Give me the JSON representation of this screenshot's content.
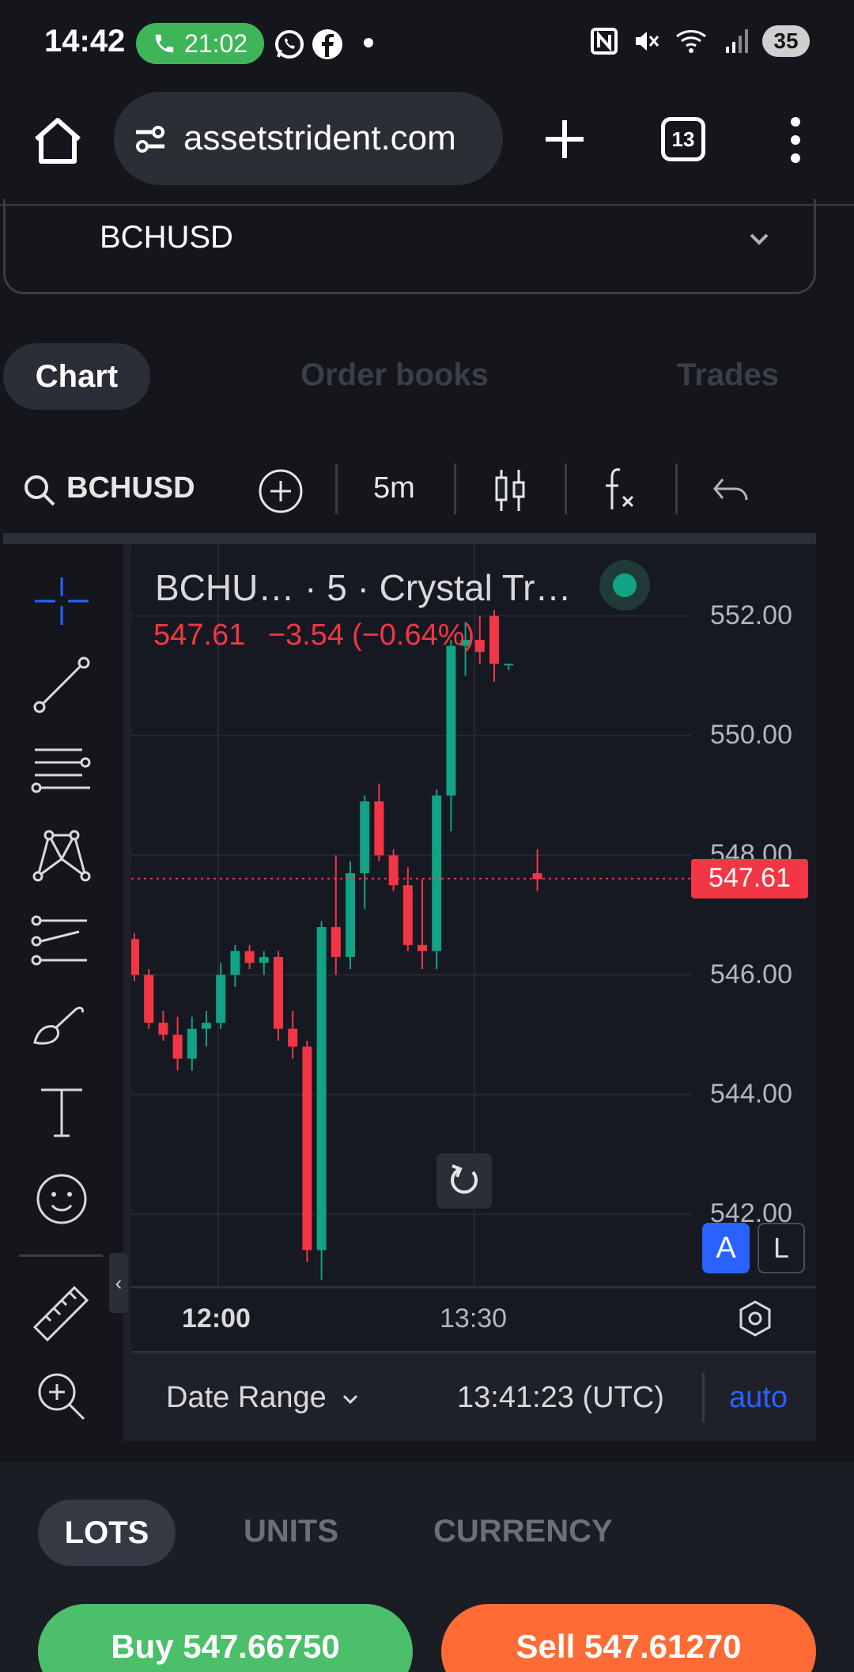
{
  "status_bar": {
    "time": "14:42",
    "call_timer": "21:02",
    "battery": "35",
    "icons": [
      "phone-icon",
      "whatsapp-icon",
      "facebook-icon",
      "dot-icon",
      "nfc-icon",
      "mute-icon",
      "wifi-icon",
      "signal-icon"
    ]
  },
  "browser": {
    "url": "assetstrident.com",
    "tab_count": "13",
    "icons": [
      "home-icon",
      "site-settings-icon",
      "new-tab-icon",
      "tab-switcher-icon",
      "menu-icon"
    ]
  },
  "symbol_selector": {
    "value": "BCHUSD",
    "icon": "chevron-down-icon"
  },
  "tabs": [
    {
      "label": "Chart",
      "active": true
    },
    {
      "label": "Order books",
      "active": false
    },
    {
      "label": "Trades",
      "active": false
    }
  ],
  "chart_toolbar": {
    "symbol": "BCHUSD",
    "interval": "5m",
    "icons": [
      "search-icon",
      "compare-add-icon",
      "candles-icon",
      "indicators-icon",
      "undo-icon"
    ]
  },
  "drawing_tools": [
    "crosshair-icon",
    "trend-line-icon",
    "fib-levels-icon",
    "pattern-icon",
    "forecast-icon",
    "brush-icon",
    "text-icon",
    "emoji-icon",
    "ruler-icon",
    "zoom-in-icon"
  ],
  "legend": {
    "title": "BCHU…  · 5 · Crystal Tr…",
    "price": "547.61",
    "change": "−3.54",
    "change_pct": "(−0.64%)"
  },
  "colors": {
    "up": "#12a284",
    "down": "#f23645",
    "accent": "#2962ff",
    "buy": "#4cbf6b",
    "sell": "#ff6b35"
  },
  "chart_data": {
    "type": "candlestick",
    "symbol": "BCHUSD",
    "interval": "5m",
    "y_ticks": [
      "552.00",
      "550.00",
      "548.00",
      "546.00",
      "544.00",
      "542.00"
    ],
    "ylim": [
      540.8,
      553.2
    ],
    "x_ticks": [
      "12:00",
      "13:30"
    ],
    "last_price_label": "547.61",
    "candles": [
      {
        "o": 546.6,
        "h": 546.7,
        "l": 545.9,
        "c": 546.0
      },
      {
        "o": 546.0,
        "h": 546.1,
        "l": 545.1,
        "c": 545.2
      },
      {
        "o": 545.2,
        "h": 545.4,
        "l": 544.9,
        "c": 545.0
      },
      {
        "o": 545.0,
        "h": 545.3,
        "l": 544.4,
        "c": 544.6
      },
      {
        "o": 544.6,
        "h": 545.3,
        "l": 544.4,
        "c": 545.1
      },
      {
        "o": 545.1,
        "h": 545.4,
        "l": 544.8,
        "c": 545.2
      },
      {
        "o": 545.2,
        "h": 546.2,
        "l": 545.1,
        "c": 546.0
      },
      {
        "o": 546.0,
        "h": 546.5,
        "l": 545.8,
        "c": 546.4
      },
      {
        "o": 546.4,
        "h": 546.5,
        "l": 546.1,
        "c": 546.2
      },
      {
        "o": 546.2,
        "h": 546.4,
        "l": 546.0,
        "c": 546.3
      },
      {
        "o": 546.3,
        "h": 546.4,
        "l": 544.9,
        "c": 545.1
      },
      {
        "o": 545.1,
        "h": 545.4,
        "l": 544.6,
        "c": 544.8
      },
      {
        "o": 544.8,
        "h": 544.9,
        "l": 541.2,
        "c": 541.4
      },
      {
        "o": 541.4,
        "h": 546.9,
        "l": 540.9,
        "c": 546.8
      },
      {
        "o": 546.8,
        "h": 548.0,
        "l": 546.0,
        "c": 546.3
      },
      {
        "o": 546.3,
        "h": 547.9,
        "l": 546.1,
        "c": 547.7
      },
      {
        "o": 547.7,
        "h": 549.0,
        "l": 547.1,
        "c": 548.9
      },
      {
        "o": 548.9,
        "h": 549.2,
        "l": 547.9,
        "c": 548.0
      },
      {
        "o": 548.0,
        "h": 548.1,
        "l": 547.4,
        "c": 547.5
      },
      {
        "o": 547.5,
        "h": 547.8,
        "l": 546.4,
        "c": 546.5
      },
      {
        "o": 546.5,
        "h": 547.6,
        "l": 546.1,
        "c": 546.4
      },
      {
        "o": 546.4,
        "h": 549.1,
        "l": 546.1,
        "c": 549.0
      },
      {
        "o": 549.0,
        "h": 551.6,
        "l": 548.4,
        "c": 551.5
      },
      {
        "o": 551.5,
        "h": 551.9,
        "l": 551.0,
        "c": 551.6
      },
      {
        "o": 551.6,
        "h": 552.0,
        "l": 551.2,
        "c": 551.4
      },
      {
        "o": 552.0,
        "h": 552.1,
        "l": 550.9,
        "c": 551.2
      },
      {
        "o": 551.2,
        "h": 551.2,
        "l": 551.1,
        "c": 551.2
      },
      null,
      {
        "o": 547.7,
        "h": 548.1,
        "l": 547.4,
        "c": 547.6
      }
    ]
  },
  "chart_controls": {
    "auto_scale_label": "A",
    "log_scale_label": "L",
    "date_range": "Date Range",
    "time_utc": "13:41:23 (UTC)",
    "auto_label": "auto",
    "icons": [
      "reset-icon",
      "settings-icon",
      "chevron-down-icon",
      "chevron-left-icon"
    ]
  },
  "order_panel": {
    "unit_tabs": [
      {
        "label": "LOTS",
        "active": true
      },
      {
        "label": "UNITS",
        "active": false
      },
      {
        "label": "CURRENCY",
        "active": false
      }
    ],
    "buy_label": "Buy 547.66750",
    "sell_label": "Sell 547.61270"
  }
}
